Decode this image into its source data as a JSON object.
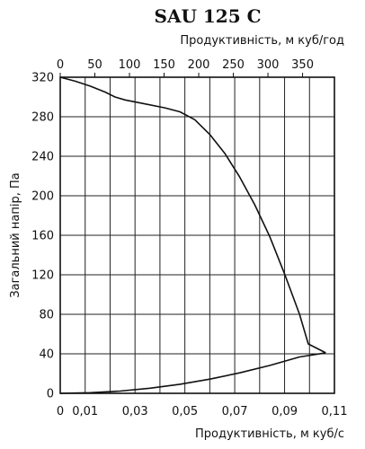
{
  "chart_data": {
    "type": "line",
    "title": "SAU 125 C",
    "xlabel": "Продуктивність, м куб/с",
    "x2label": "Продуктивність, м куб/год",
    "ylabel": "Загальний напір, Па",
    "xlim": [
      0,
      0.11
    ],
    "x2lim": [
      0,
      396
    ],
    "ylim": [
      0,
      320
    ],
    "x_ticks": [
      0,
      0.01,
      0.03,
      0.05,
      0.07,
      0.09,
      0.11
    ],
    "x_tick_labels": [
      "0",
      "0,01",
      "0,03",
      "0,05",
      "0,07",
      "0,09",
      "0,11"
    ],
    "x2_ticks": [
      0,
      50,
      100,
      150,
      200,
      250,
      300,
      350
    ],
    "x2_tick_labels": [
      "0",
      "50",
      "100",
      "150",
      "200",
      "250",
      "300",
      "350"
    ],
    "y_ticks": [
      0,
      40,
      80,
      120,
      160,
      200,
      240,
      280,
      320
    ],
    "y_tick_labels": [
      "0",
      "40",
      "80",
      "120",
      "160",
      "200",
      "240",
      "280",
      "320"
    ],
    "grid": true,
    "series": [
      {
        "values": [
          [
            0,
            320
          ],
          [
            0.006,
            316
          ],
          [
            0.012,
            311
          ],
          [
            0.018,
            305
          ],
          [
            0.022,
            300
          ],
          [
            0.026,
            297
          ],
          [
            0.034,
            293
          ],
          [
            0.042,
            289
          ],
          [
            0.048,
            285
          ],
          [
            0.054,
            277
          ],
          [
            0.06,
            262
          ],
          [
            0.066,
            243
          ],
          [
            0.072,
            219
          ],
          [
            0.078,
            191
          ],
          [
            0.084,
            159
          ],
          [
            0.09,
            121
          ],
          [
            0.096,
            80
          ],
          [
            0.0995,
            50
          ],
          [
            0.1065,
            41
          ]
        ]
      },
      {
        "values": [
          [
            0,
            0
          ],
          [
            0.012,
            0.6
          ],
          [
            0.024,
            2.3
          ],
          [
            0.036,
            5.2
          ],
          [
            0.048,
            9.2
          ],
          [
            0.06,
            14.4
          ],
          [
            0.072,
            20.7
          ],
          [
            0.084,
            28.2
          ],
          [
            0.096,
            36.8
          ],
          [
            0.1065,
            41
          ]
        ]
      }
    ]
  }
}
